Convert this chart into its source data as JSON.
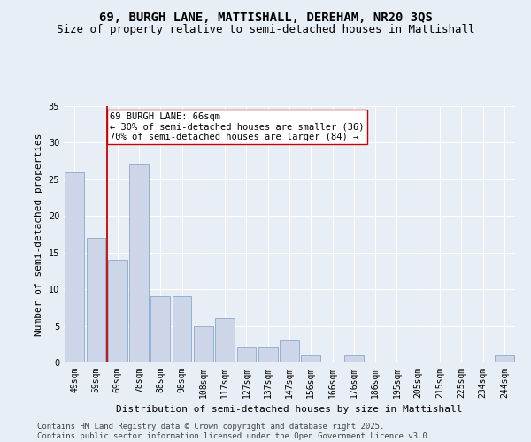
{
  "title1": "69, BURGH LANE, MATTISHALL, DEREHAM, NR20 3QS",
  "title2": "Size of property relative to semi-detached houses in Mattishall",
  "xlabel": "Distribution of semi-detached houses by size in Mattishall",
  "ylabel": "Number of semi-detached properties",
  "categories": [
    "49sqm",
    "59sqm",
    "69sqm",
    "78sqm",
    "88sqm",
    "98sqm",
    "108sqm",
    "117sqm",
    "127sqm",
    "137sqm",
    "147sqm",
    "156sqm",
    "166sqm",
    "176sqm",
    "186sqm",
    "195sqm",
    "205sqm",
    "215sqm",
    "225sqm",
    "234sqm",
    "244sqm"
  ],
  "values": [
    26,
    17,
    14,
    27,
    9,
    9,
    5,
    6,
    2,
    2,
    3,
    1,
    0,
    1,
    0,
    0,
    0,
    0,
    0,
    0,
    1
  ],
  "bar_color": "#ccd6e8",
  "bar_edge_color": "#8aaacb",
  "vline_color": "#cc0000",
  "annotation_title": "69 BURGH LANE: 66sqm",
  "annotation_line1": "← 30% of semi-detached houses are smaller (36)",
  "annotation_line2": "70% of semi-detached houses are larger (84) →",
  "annotation_box_color": "#cc0000",
  "ylim": [
    0,
    35
  ],
  "yticks": [
    0,
    5,
    10,
    15,
    20,
    25,
    30,
    35
  ],
  "footer1": "Contains HM Land Registry data © Crown copyright and database right 2025.",
  "footer2": "Contains public sector information licensed under the Open Government Licence v3.0.",
  "bg_color": "#e8eef5",
  "plot_bg_color": "#e8eef5",
  "grid_color": "#ffffff",
  "title_fontsize": 10,
  "subtitle_fontsize": 9,
  "axis_label_fontsize": 8,
  "tick_fontsize": 7,
  "annotation_fontsize": 7.5,
  "footer_fontsize": 6.5
}
